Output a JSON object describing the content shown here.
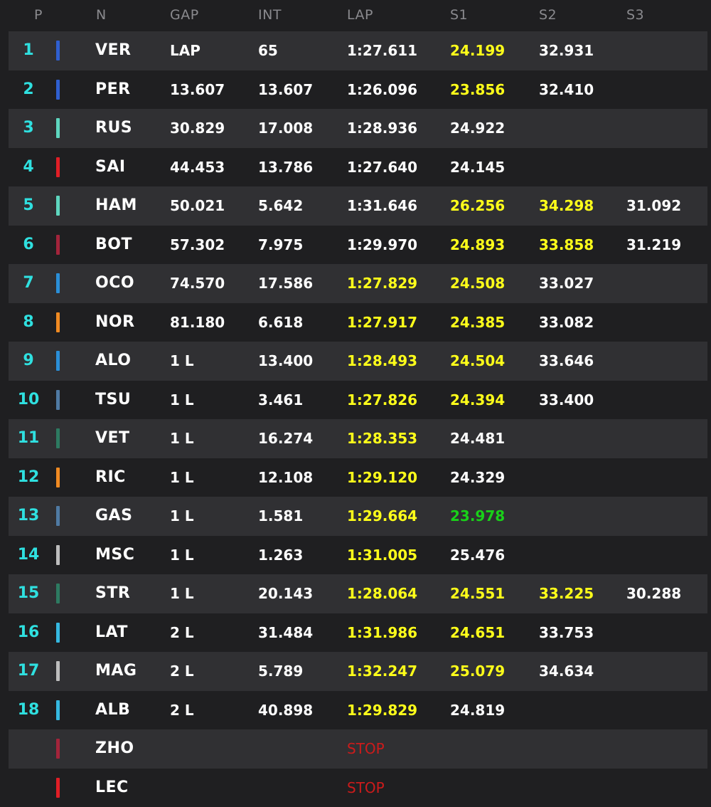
{
  "headers": {
    "p": "P",
    "n": "N",
    "gap": "GAP",
    "int": "INT",
    "lap": "LAP",
    "s1": "S1",
    "s2": "S2",
    "s3": "S3"
  },
  "colors": {
    "position": "#2fe0e0",
    "personal_best": "#ffff1a",
    "overall_best": "#19d119",
    "stop": "#cc1b1b"
  },
  "rows": [
    {
      "pos": "1",
      "code": "VER",
      "team_color": "#2f5fd0",
      "gap": "LAP",
      "int": "65",
      "lap": {
        "v": "1:27.611",
        "c": "white"
      },
      "s1": {
        "v": "24.199",
        "c": "yellow"
      },
      "s2": {
        "v": "32.931",
        "c": "white"
      },
      "s3": {
        "v": "",
        "c": "white"
      }
    },
    {
      "pos": "2",
      "code": "PER",
      "team_color": "#2f5fd0",
      "gap": "13.607",
      "int": "13.607",
      "lap": {
        "v": "1:26.096",
        "c": "white"
      },
      "s1": {
        "v": "23.856",
        "c": "yellow"
      },
      "s2": {
        "v": "32.410",
        "c": "white"
      },
      "s3": {
        "v": "",
        "c": "white"
      }
    },
    {
      "pos": "3",
      "code": "RUS",
      "team_color": "#5ed6bf",
      "gap": "30.829",
      "int": "17.008",
      "lap": {
        "v": "1:28.936",
        "c": "white"
      },
      "s1": {
        "v": "24.922",
        "c": "white"
      },
      "s2": {
        "v": "",
        "c": "white"
      },
      "s3": {
        "v": "",
        "c": "white"
      }
    },
    {
      "pos": "4",
      "code": "SAI",
      "team_color": "#e01e26",
      "gap": "44.453",
      "int": "13.786",
      "lap": {
        "v": "1:27.640",
        "c": "white"
      },
      "s1": {
        "v": "24.145",
        "c": "white"
      },
      "s2": {
        "v": "",
        "c": "white"
      },
      "s3": {
        "v": "",
        "c": "white"
      }
    },
    {
      "pos": "5",
      "code": "HAM",
      "team_color": "#5ed6bf",
      "gap": "50.021",
      "int": "5.642",
      "lap": {
        "v": "1:31.646",
        "c": "white"
      },
      "s1": {
        "v": "26.256",
        "c": "yellow"
      },
      "s2": {
        "v": "34.298",
        "c": "yellow"
      },
      "s3": {
        "v": "31.092",
        "c": "white"
      }
    },
    {
      "pos": "6",
      "code": "BOT",
      "team_color": "#a3243b",
      "gap": "57.302",
      "int": "7.975",
      "lap": {
        "v": "1:29.970",
        "c": "white"
      },
      "s1": {
        "v": "24.893",
        "c": "yellow"
      },
      "s2": {
        "v": "33.858",
        "c": "yellow"
      },
      "s3": {
        "v": "31.219",
        "c": "white"
      }
    },
    {
      "pos": "7",
      "code": "OCO",
      "team_color": "#2a8fd8",
      "gap": "74.570",
      "int": "17.586",
      "lap": {
        "v": "1:27.829",
        "c": "yellow"
      },
      "s1": {
        "v": "24.508",
        "c": "yellow"
      },
      "s2": {
        "v": "33.027",
        "c": "white"
      },
      "s3": {
        "v": "",
        "c": "white"
      }
    },
    {
      "pos": "8",
      "code": "NOR",
      "team_color": "#f08a22",
      "gap": "81.180",
      "int": "6.618",
      "lap": {
        "v": "1:27.917",
        "c": "yellow"
      },
      "s1": {
        "v": "24.385",
        "c": "yellow"
      },
      "s2": {
        "v": "33.082",
        "c": "white"
      },
      "s3": {
        "v": "",
        "c": "white"
      }
    },
    {
      "pos": "9",
      "code": "ALO",
      "team_color": "#2a8fd8",
      "gap": "1 L",
      "int": "13.400",
      "lap": {
        "v": "1:28.493",
        "c": "yellow"
      },
      "s1": {
        "v": "24.504",
        "c": "yellow"
      },
      "s2": {
        "v": "33.646",
        "c": "white"
      },
      "s3": {
        "v": "",
        "c": "white"
      }
    },
    {
      "pos": "10",
      "code": "TSU",
      "team_color": "#4f7aa3",
      "gap": "1 L",
      "int": "3.461",
      "lap": {
        "v": "1:27.826",
        "c": "yellow"
      },
      "s1": {
        "v": "24.394",
        "c": "yellow"
      },
      "s2": {
        "v": "33.400",
        "c": "white"
      },
      "s3": {
        "v": "",
        "c": "white"
      }
    },
    {
      "pos": "11",
      "code": "VET",
      "team_color": "#2d7a61",
      "gap": "1 L",
      "int": "16.274",
      "lap": {
        "v": "1:28.353",
        "c": "yellow"
      },
      "s1": {
        "v": "24.481",
        "c": "white"
      },
      "s2": {
        "v": "",
        "c": "white"
      },
      "s3": {
        "v": "",
        "c": "white"
      }
    },
    {
      "pos": "12",
      "code": "RIC",
      "team_color": "#f08a22",
      "gap": "1 L",
      "int": "12.108",
      "lap": {
        "v": "1:29.120",
        "c": "yellow"
      },
      "s1": {
        "v": "24.329",
        "c": "white"
      },
      "s2": {
        "v": "",
        "c": "white"
      },
      "s3": {
        "v": "",
        "c": "white"
      }
    },
    {
      "pos": "13",
      "code": "GAS",
      "team_color": "#4f7aa3",
      "gap": "1 L",
      "int": "1.581",
      "lap": {
        "v": "1:29.664",
        "c": "yellow"
      },
      "s1": {
        "v": "23.978",
        "c": "green"
      },
      "s2": {
        "v": "",
        "c": "white"
      },
      "s3": {
        "v": "",
        "c": "white"
      }
    },
    {
      "pos": "14",
      "code": "MSC",
      "team_color": "#bdbdbd",
      "gap": "1 L",
      "int": "1.263",
      "lap": {
        "v": "1:31.005",
        "c": "yellow"
      },
      "s1": {
        "v": "25.476",
        "c": "white"
      },
      "s2": {
        "v": "",
        "c": "white"
      },
      "s3": {
        "v": "",
        "c": "white"
      }
    },
    {
      "pos": "15",
      "code": "STR",
      "team_color": "#2d7a61",
      "gap": "1 L",
      "int": "20.143",
      "lap": {
        "v": "1:28.064",
        "c": "yellow"
      },
      "s1": {
        "v": "24.551",
        "c": "yellow"
      },
      "s2": {
        "v": "33.225",
        "c": "yellow"
      },
      "s3": {
        "v": "30.288",
        "c": "white"
      }
    },
    {
      "pos": "16",
      "code": "LAT",
      "team_color": "#35b8e0",
      "gap": "2 L",
      "int": "31.484",
      "lap": {
        "v": "1:31.986",
        "c": "yellow"
      },
      "s1": {
        "v": "24.651",
        "c": "yellow"
      },
      "s2": {
        "v": "33.753",
        "c": "white"
      },
      "s3": {
        "v": "",
        "c": "white"
      }
    },
    {
      "pos": "17",
      "code": "MAG",
      "team_color": "#bdbdbd",
      "gap": "2 L",
      "int": "5.789",
      "lap": {
        "v": "1:32.247",
        "c": "yellow"
      },
      "s1": {
        "v": "25.079",
        "c": "yellow"
      },
      "s2": {
        "v": "34.634",
        "c": "white"
      },
      "s3": {
        "v": "",
        "c": "white"
      }
    },
    {
      "pos": "18",
      "code": "ALB",
      "team_color": "#35b8e0",
      "gap": "2 L",
      "int": "40.898",
      "lap": {
        "v": "1:29.829",
        "c": "yellow"
      },
      "s1": {
        "v": "24.819",
        "c": "white"
      },
      "s2": {
        "v": "",
        "c": "white"
      },
      "s3": {
        "v": "",
        "c": "white"
      }
    },
    {
      "pos": "",
      "code": "ZHO",
      "team_color": "#a3243b",
      "gap": "",
      "int": "",
      "lap": {
        "v": "STOP",
        "c": "red"
      },
      "s1": {
        "v": "",
        "c": "white"
      },
      "s2": {
        "v": "",
        "c": "white"
      },
      "s3": {
        "v": "",
        "c": "white"
      }
    },
    {
      "pos": "",
      "code": "LEC",
      "team_color": "#e01e26",
      "gap": "",
      "int": "",
      "lap": {
        "v": "STOP",
        "c": "red"
      },
      "s1": {
        "v": "",
        "c": "white"
      },
      "s2": {
        "v": "",
        "c": "white"
      },
      "s3": {
        "v": "",
        "c": "white"
      }
    }
  ]
}
